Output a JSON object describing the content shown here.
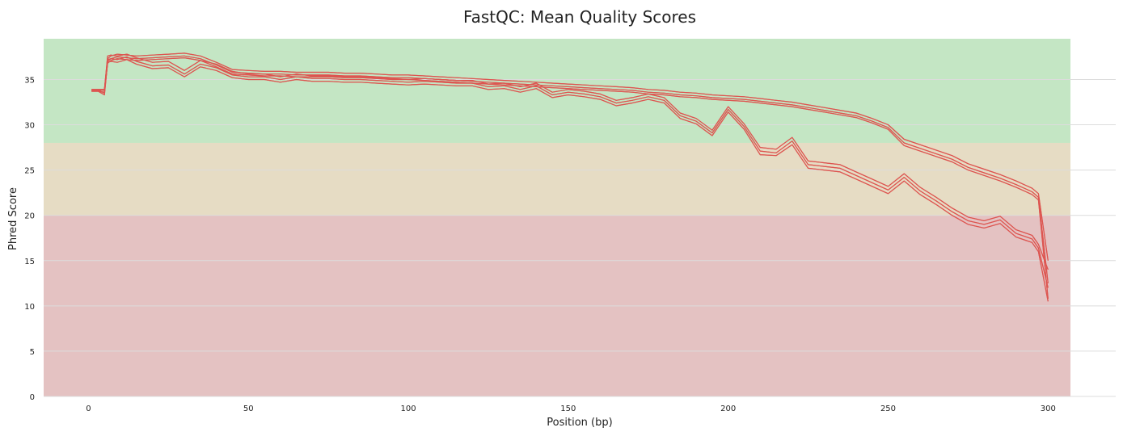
{
  "chart_data": {
    "type": "line",
    "title": "FastQC: Mean Quality Scores",
    "xlabel": "Position (bp)",
    "ylabel": "Phred Score",
    "xlim": [
      -14,
      307
    ],
    "ylim": [
      0,
      39.5
    ],
    "xticks": [
      0,
      50,
      100,
      150,
      200,
      250,
      300
    ],
    "yticks": [
      0,
      5,
      10,
      15,
      20,
      25,
      30,
      35
    ],
    "grid": "horizontal",
    "legend": "none",
    "line_color": "#dd5550",
    "zones": [
      {
        "from": 28,
        "to": 39.5,
        "color": "#c4e6c4"
      },
      {
        "from": 20,
        "to": 28,
        "color": "#e6dcc4"
      },
      {
        "from": 0,
        "to": 20,
        "color": "#e4c2c2"
      }
    ],
    "series": [
      {
        "x": [
          1,
          3,
          5,
          6,
          7,
          9,
          12,
          15,
          20,
          25,
          30,
          35,
          40,
          45,
          50,
          55,
          60,
          65,
          70,
          75,
          80,
          85,
          90,
          95,
          100,
          105,
          110,
          115,
          120,
          125,
          130,
          135,
          140,
          145,
          150,
          155,
          160,
          165,
          170,
          175,
          180,
          185,
          190,
          195,
          200,
          205,
          210,
          215,
          220,
          225,
          230,
          235,
          240,
          245,
          250,
          255,
          260,
          265,
          270,
          275,
          280,
          285,
          290,
          295,
          297,
          300
        ],
        "y": [
          33.9,
          33.9,
          33.9,
          37.3,
          37.6,
          37.8,
          37.7,
          37.6,
          37.7,
          37.8,
          37.9,
          37.6,
          36.9,
          36.1,
          36.0,
          35.9,
          35.9,
          35.8,
          35.8,
          35.8,
          35.7,
          35.7,
          35.6,
          35.5,
          35.5,
          35.4,
          35.3,
          35.2,
          35.1,
          35.0,
          34.9,
          34.8,
          34.7,
          34.6,
          34.5,
          34.4,
          34.3,
          34.2,
          34.1,
          33.9,
          33.8,
          33.6,
          33.5,
          33.3,
          33.2,
          33.1,
          32.9,
          32.7,
          32.5,
          32.2,
          31.9,
          31.6,
          31.3,
          30.7,
          30.0,
          28.4,
          27.8,
          27.2,
          26.6,
          25.7,
          25.1,
          24.5,
          23.8,
          23.0,
          22.4,
          15.0
        ]
      },
      {
        "x": [
          1,
          3,
          5,
          6,
          7,
          9,
          12,
          15,
          20,
          25,
          30,
          35,
          40,
          45,
          50,
          55,
          60,
          65,
          70,
          75,
          80,
          85,
          90,
          95,
          100,
          105,
          110,
          115,
          120,
          125,
          130,
          135,
          140,
          145,
          150,
          155,
          160,
          165,
          170,
          175,
          180,
          185,
          190,
          195,
          200,
          205,
          210,
          215,
          220,
          225,
          230,
          235,
          240,
          245,
          250,
          255,
          260,
          265,
          270,
          275,
          280,
          285,
          290,
          295,
          297,
          300
        ],
        "y": [
          33.8,
          33.8,
          33.8,
          37.0,
          37.3,
          37.5,
          37.4,
          37.3,
          37.4,
          37.5,
          37.6,
          37.3,
          36.6,
          35.8,
          35.7,
          35.6,
          35.6,
          35.5,
          35.5,
          35.5,
          35.4,
          35.4,
          35.3,
          35.2,
          35.2,
          35.1,
          35.0,
          34.9,
          34.8,
          34.7,
          34.6,
          34.5,
          34.4,
          34.3,
          34.2,
          34.1,
          34.0,
          33.9,
          33.8,
          33.6,
          33.5,
          33.3,
          33.2,
          33.0,
          32.9,
          32.8,
          32.6,
          32.4,
          32.2,
          31.9,
          31.6,
          31.3,
          31.0,
          30.4,
          29.7,
          28.0,
          27.4,
          26.8,
          26.2,
          25.3,
          24.7,
          24.1,
          23.4,
          22.6,
          22.0,
          12.5
        ]
      },
      {
        "x": [
          1,
          3,
          5,
          6,
          7,
          9,
          12,
          15,
          20,
          25,
          30,
          35,
          40,
          45,
          50,
          55,
          60,
          65,
          70,
          75,
          80,
          85,
          90,
          95,
          100,
          105,
          110,
          115,
          120,
          125,
          130,
          135,
          140,
          145,
          150,
          155,
          160,
          165,
          170,
          175,
          180,
          185,
          190,
          195,
          200,
          205,
          210,
          215,
          220,
          225,
          230,
          235,
          240,
          245,
          250,
          255,
          260,
          265,
          270,
          275,
          280,
          285,
          290,
          295,
          297,
          300
        ],
        "y": [
          33.7,
          33.7,
          33.6,
          36.8,
          37.1,
          37.3,
          37.2,
          37.1,
          37.2,
          37.3,
          37.4,
          37.1,
          36.4,
          35.6,
          35.5,
          35.4,
          35.4,
          35.3,
          35.3,
          35.3,
          35.2,
          35.2,
          35.1,
          35.0,
          35.0,
          34.9,
          34.8,
          34.7,
          34.6,
          34.5,
          34.4,
          34.3,
          34.2,
          34.1,
          34.0,
          33.9,
          33.8,
          33.7,
          33.6,
          33.4,
          33.3,
          33.1,
          33.0,
          32.8,
          32.7,
          32.6,
          32.4,
          32.2,
          32.0,
          31.7,
          31.4,
          31.1,
          30.8,
          30.2,
          29.5,
          27.7,
          27.1,
          26.5,
          25.9,
          25.0,
          24.4,
          23.8,
          23.1,
          22.3,
          21.7,
          10.8
        ]
      },
      {
        "x": [
          1,
          3,
          5,
          6,
          7,
          9,
          12,
          15,
          20,
          25,
          30,
          35,
          40,
          45,
          50,
          55,
          60,
          65,
          70,
          75,
          80,
          85,
          90,
          95,
          100,
          105,
          110,
          115,
          120,
          125,
          130,
          135,
          140,
          145,
          150,
          155,
          160,
          165,
          170,
          175,
          180,
          185,
          190,
          195,
          200,
          205,
          210,
          215,
          220,
          225,
          230,
          235,
          240,
          245,
          250,
          255,
          260,
          265,
          270,
          275,
          280,
          285,
          290,
          295,
          297,
          300
        ],
        "y": [
          33.9,
          33.9,
          33.9,
          37.6,
          37.7,
          37.6,
          37.8,
          37.4,
          36.9,
          37.0,
          36.0,
          37.1,
          36.7,
          35.9,
          35.6,
          35.6,
          35.3,
          35.6,
          35.4,
          35.4,
          35.3,
          35.3,
          35.2,
          35.1,
          35.0,
          35.1,
          35.0,
          34.9,
          34.9,
          34.5,
          34.6,
          34.2,
          34.6,
          33.6,
          33.9,
          33.7,
          33.4,
          32.7,
          33.0,
          33.4,
          33.0,
          31.3,
          30.7,
          29.4,
          32.0,
          30.1,
          27.5,
          27.3,
          28.6,
          26.0,
          25.8,
          25.6,
          24.8,
          24.0,
          23.2,
          24.6,
          23.1,
          22.0,
          20.8,
          19.8,
          19.4,
          19.9,
          18.4,
          17.8,
          16.8,
          14.0
        ]
      },
      {
        "x": [
          1,
          3,
          5,
          6,
          7,
          9,
          12,
          15,
          20,
          25,
          30,
          35,
          40,
          45,
          50,
          55,
          60,
          65,
          70,
          75,
          80,
          85,
          90,
          95,
          100,
          105,
          110,
          115,
          120,
          125,
          130,
          135,
          140,
          145,
          150,
          155,
          160,
          165,
          170,
          175,
          180,
          185,
          190,
          195,
          200,
          205,
          210,
          215,
          220,
          225,
          230,
          235,
          240,
          245,
          250,
          255,
          260,
          265,
          270,
          275,
          280,
          285,
          290,
          295,
          297,
          300
        ],
        "y": [
          33.8,
          33.8,
          33.5,
          37.2,
          37.3,
          37.2,
          37.5,
          37.0,
          36.5,
          36.6,
          35.6,
          36.7,
          36.3,
          35.5,
          35.3,
          35.3,
          35.0,
          35.3,
          35.1,
          35.1,
          35.0,
          35.0,
          34.9,
          34.8,
          34.7,
          34.8,
          34.7,
          34.6,
          34.6,
          34.2,
          34.3,
          33.9,
          34.3,
          33.3,
          33.6,
          33.4,
          33.1,
          32.4,
          32.7,
          33.1,
          32.7,
          31.0,
          30.4,
          29.1,
          31.7,
          29.8,
          27.1,
          26.9,
          28.2,
          25.6,
          25.4,
          25.2,
          24.4,
          23.6,
          22.8,
          24.2,
          22.7,
          21.6,
          20.4,
          19.4,
          19.0,
          19.5,
          18.0,
          17.4,
          16.4,
          12.0
        ]
      },
      {
        "x": [
          1,
          3,
          5,
          6,
          7,
          9,
          12,
          15,
          20,
          25,
          30,
          35,
          40,
          45,
          50,
          55,
          60,
          65,
          70,
          75,
          80,
          85,
          90,
          95,
          100,
          105,
          110,
          115,
          120,
          125,
          130,
          135,
          140,
          145,
          150,
          155,
          160,
          165,
          170,
          175,
          180,
          185,
          190,
          195,
          200,
          205,
          210,
          215,
          220,
          225,
          230,
          235,
          240,
          245,
          250,
          255,
          260,
          265,
          270,
          275,
          280,
          285,
          290,
          295,
          297,
          300
        ],
        "y": [
          33.7,
          33.7,
          33.3,
          36.9,
          37.0,
          36.9,
          37.2,
          36.7,
          36.2,
          36.3,
          35.3,
          36.4,
          36.0,
          35.2,
          35.0,
          35.0,
          34.7,
          35.0,
          34.8,
          34.8,
          34.7,
          34.7,
          34.6,
          34.5,
          34.4,
          34.5,
          34.4,
          34.3,
          34.3,
          33.9,
          34.0,
          33.6,
          34.0,
          33.0,
          33.3,
          33.1,
          32.8,
          32.1,
          32.4,
          32.8,
          32.4,
          30.7,
          30.1,
          28.8,
          31.4,
          29.5,
          26.7,
          26.6,
          27.8,
          25.2,
          25.0,
          24.8,
          24.0,
          23.2,
          22.4,
          23.8,
          22.3,
          21.2,
          20.0,
          19.0,
          18.6,
          19.1,
          17.6,
          17.0,
          16.0,
          10.5
        ]
      }
    ]
  }
}
